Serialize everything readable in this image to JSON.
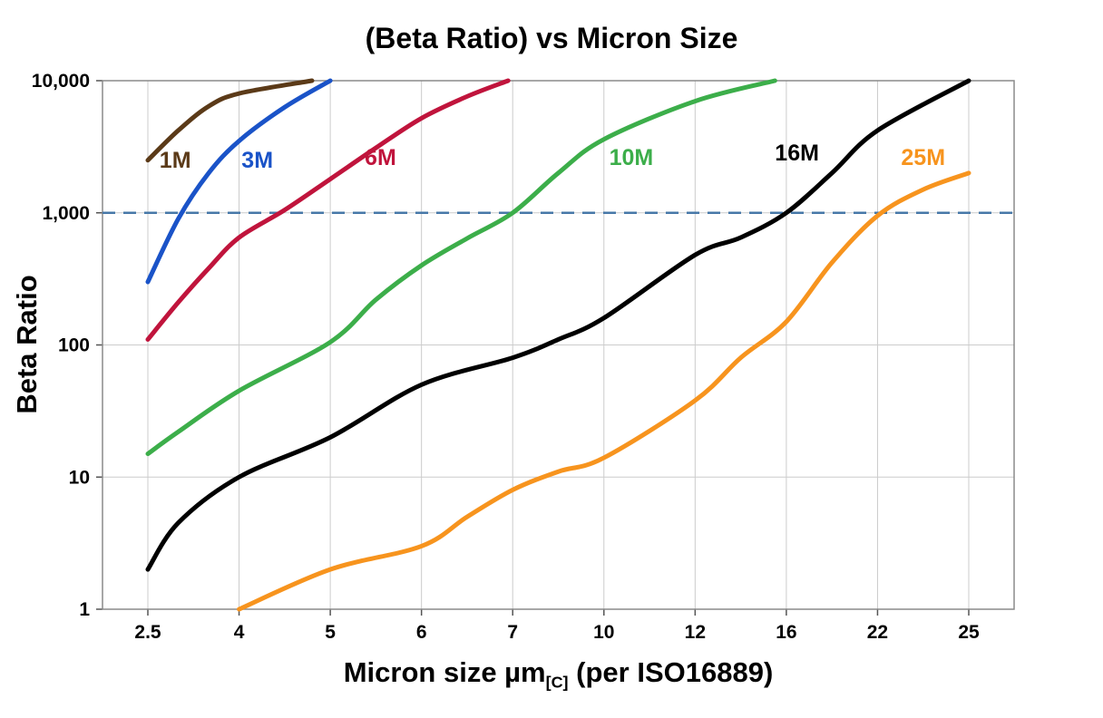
{
  "chart_data": {
    "type": "line",
    "title": "(Beta Ratio) vs Micron Size",
    "ylabel": "Beta Ratio",
    "xlabel_prefix": "Micron size µm",
    "xlabel_sub": "[C]",
    "xlabel_suffix": " (per ISO16889)",
    "x_ticks": [
      2.5,
      4,
      5,
      6,
      7,
      10,
      12,
      16,
      22,
      25
    ],
    "x_tick_labels": [
      "2.5",
      "4",
      "5",
      "6",
      "7",
      "10",
      "12",
      "16",
      "22",
      "25"
    ],
    "y_ticks": [
      1,
      10,
      100,
      1000,
      10000
    ],
    "y_tick_labels": [
      "1",
      "10",
      "100",
      "1,000",
      "10,000"
    ],
    "ylim": [
      1,
      10000
    ],
    "y_scale": "log",
    "x_spacing": "equal-per-tick",
    "grid": true,
    "grid_color": "#cccccc",
    "axis_color": "#8a8a8a",
    "legend_position": "inline-labels",
    "reference_line": {
      "value": 1000,
      "color": "#4778A8",
      "style": "dashed"
    },
    "series": [
      {
        "name": "1M",
        "color": "#5B3A18",
        "label_x": 2.95,
        "label_y": 2200,
        "points": [
          [
            2.5,
            2500
          ],
          [
            3,
            4200
          ],
          [
            3.5,
            6400
          ],
          [
            4,
            8000
          ],
          [
            4.8,
            10000
          ]
        ]
      },
      {
        "name": "3M",
        "color": "#1A53C8",
        "label_x": 4.2,
        "label_y": 2200,
        "points": [
          [
            2.5,
            300
          ],
          [
            3,
            900
          ],
          [
            3.5,
            2000
          ],
          [
            4,
            3500
          ],
          [
            4.5,
            6300
          ],
          [
            5,
            10000
          ]
        ]
      },
      {
        "name": "6M",
        "color": "#C0143C",
        "label_x": 5.55,
        "label_y": 2300,
        "points": [
          [
            2.5,
            110
          ],
          [
            3,
            210
          ],
          [
            3.5,
            380
          ],
          [
            4,
            650
          ],
          [
            4.5,
            1050
          ],
          [
            5,
            1800
          ],
          [
            5.5,
            3100
          ],
          [
            6,
            5200
          ],
          [
            6.5,
            7600
          ],
          [
            6.95,
            10000
          ]
        ]
      },
      {
        "name": "10M",
        "color": "#3CAE4A",
        "label_x": 10.6,
        "label_y": 2300,
        "points": [
          [
            2.5,
            15
          ],
          [
            3,
            22
          ],
          [
            4,
            45
          ],
          [
            5,
            105
          ],
          [
            5.5,
            220
          ],
          [
            6,
            400
          ],
          [
            6.5,
            640
          ],
          [
            7,
            1000
          ],
          [
            8.5,
            2000
          ],
          [
            10,
            3600
          ],
          [
            12,
            7000
          ],
          [
            15.5,
            10000
          ]
        ]
      },
      {
        "name": "16M",
        "color": "#000000",
        "label_x": 16.7,
        "label_y": 2500,
        "points": [
          [
            2.5,
            2
          ],
          [
            3,
            4.5
          ],
          [
            4,
            10
          ],
          [
            5,
            20
          ],
          [
            6,
            50
          ],
          [
            7,
            80
          ],
          [
            8.5,
            110
          ],
          [
            10,
            160
          ],
          [
            12,
            480
          ],
          [
            14,
            650
          ],
          [
            16,
            1000
          ],
          [
            19,
            2000
          ],
          [
            22,
            4200
          ],
          [
            25,
            10000
          ]
        ]
      },
      {
        "name": "25M",
        "color": "#F7941E",
        "label_x": 23.5,
        "label_y": 2300,
        "points": [
          [
            4,
            1
          ],
          [
            5,
            2
          ],
          [
            6,
            3
          ],
          [
            6.5,
            5
          ],
          [
            7,
            8
          ],
          [
            8.5,
            11
          ],
          [
            10,
            14
          ],
          [
            12,
            38
          ],
          [
            14,
            80
          ],
          [
            16,
            150
          ],
          [
            19,
            420
          ],
          [
            22,
            950
          ],
          [
            23.5,
            1500
          ],
          [
            25,
            2000
          ]
        ]
      }
    ]
  }
}
